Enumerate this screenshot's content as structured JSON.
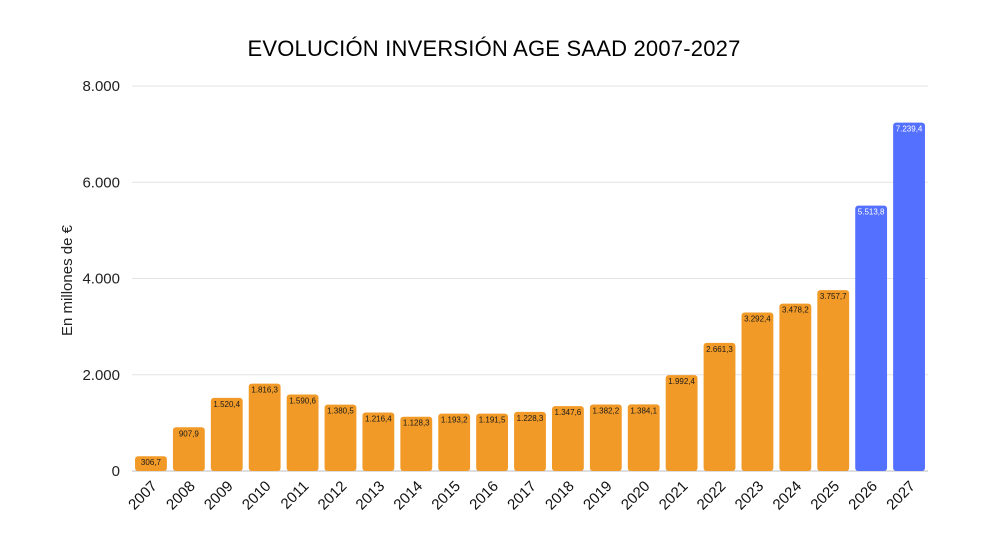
{
  "chart_data": {
    "type": "bar",
    "title": "EVOLUCIÓN INVERSIÓN AGE SAAD 2007-2027",
    "ylabel": "En millones de €",
    "xlabel": "",
    "ylim": [
      0,
      8000
    ],
    "yticks": [
      "0",
      "2.000",
      "4.000",
      "6.000",
      "8.000"
    ],
    "ytick_values": [
      0,
      2000,
      4000,
      6000,
      8000
    ],
    "grid": true,
    "categories": [
      "2007",
      "2008",
      "2009",
      "2010",
      "2011",
      "2012",
      "2013",
      "2014",
      "2015",
      "2016",
      "2017",
      "2018",
      "2019",
      "2020",
      "2021",
      "2022",
      "2023",
      "2024",
      "2025",
      "2026",
      "2027"
    ],
    "values": [
      306.7,
      907.9,
      1520.4,
      1816.3,
      1590.6,
      1380.5,
      1216.4,
      1128.3,
      1193.2,
      1191.5,
      1228.3,
      1347.6,
      1382.2,
      1384.1,
      1992.4,
      2661.3,
      3292.4,
      3478.2,
      3757.7,
      5513.8,
      7239.4
    ],
    "labels": [
      "306,7",
      "907,9",
      "1.520,4",
      "1.816,3",
      "1.590,6",
      "1.380,5",
      "1.216,4",
      "1.128,3",
      "1.193,2",
      "1.191,5",
      "1.228,3",
      "1.347,6",
      "1.382,2",
      "1.384,1",
      "1.992,4",
      "2.661,3",
      "3.292,4",
      "3.478,2",
      "3.757,7",
      "5.513,8",
      "7.239,4"
    ],
    "colors": {
      "actual": "#F29A27",
      "projected": "#5470FF"
    },
    "projected_categories": [
      "2026",
      "2027"
    ]
  }
}
